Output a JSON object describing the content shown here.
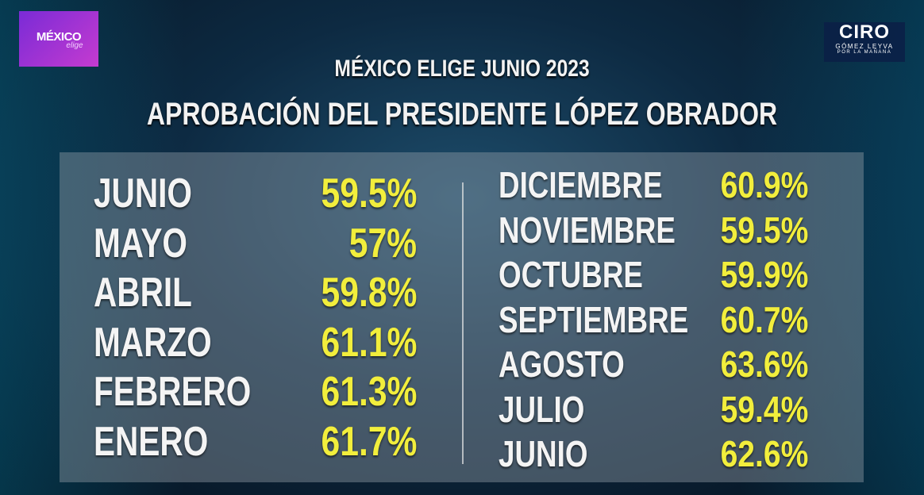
{
  "logo_left": {
    "title": "MÉXICO",
    "subtitle": "elige"
  },
  "logo_right": {
    "title": "CIRO",
    "line1": "GÓMEZ LEYVA",
    "line2": "POR LA MAÑANA"
  },
  "header": {
    "title": "MÉXICO ELIGE JUNIO 2023",
    "subtitle": "APROBACIÓN DEL PRESIDENTE LÓPEZ OBRADOR"
  },
  "table_left": {
    "rows": [
      [
        "JUNIO",
        "59.5%"
      ],
      [
        "MAYO",
        "57%"
      ],
      [
        "ABRIL",
        "59.8%"
      ],
      [
        "MARZO",
        "61.1%"
      ],
      [
        "FEBRERO",
        "61.3%"
      ],
      [
        "ENERO",
        "61.7%"
      ]
    ]
  },
  "table_right": {
    "rows": [
      [
        "DICIEMBRE",
        "60.9%"
      ],
      [
        "NOVIEMBRE",
        "59.5%"
      ],
      [
        "OCTUBRE",
        "59.9%"
      ],
      [
        "SEPTIEMBRE",
        "60.7%"
      ],
      [
        "AGOSTO",
        "63.6%"
      ],
      [
        "JULIO",
        "59.4%"
      ],
      [
        "JUNIO",
        "62.6%"
      ]
    ]
  }
}
